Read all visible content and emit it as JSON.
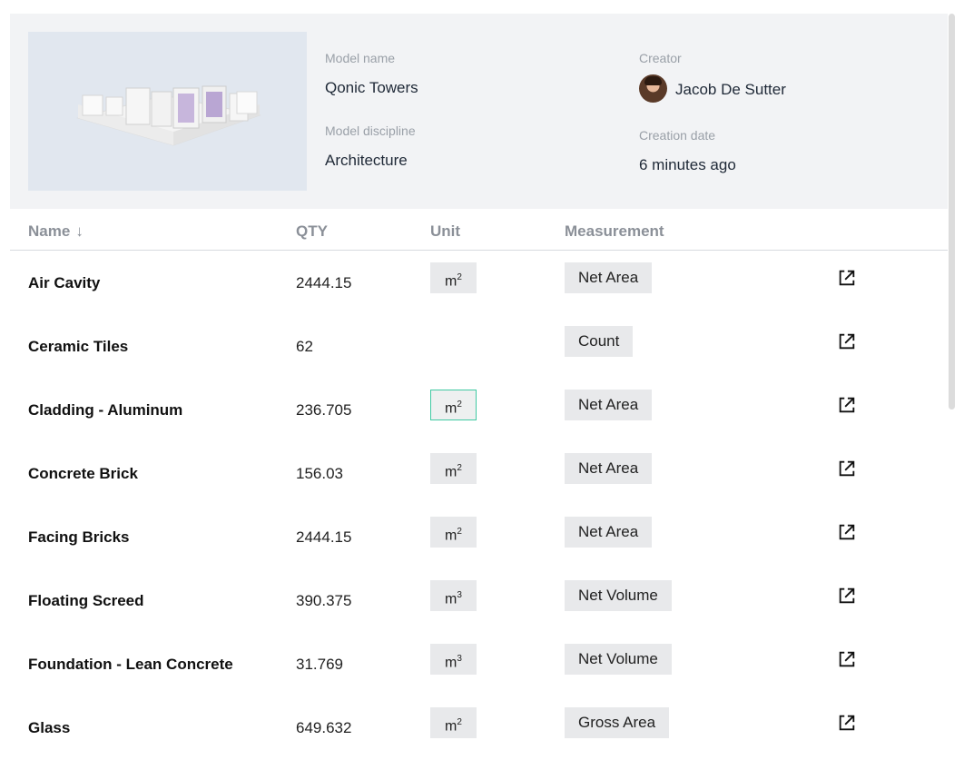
{
  "model": {
    "name_label": "Model name",
    "name": "Qonic Towers",
    "discipline_label": "Model discipline",
    "discipline": "Architecture",
    "creator_label": "Creator",
    "creator": "Jacob De Sutter",
    "creation_date_label": "Creation date",
    "creation_date": "6 minutes ago"
  },
  "table": {
    "columns": {
      "name": "Name",
      "sort_arrow": "↓",
      "qty": "QTY",
      "unit": "Unit",
      "measurement": "Measurement"
    },
    "rows": [
      {
        "name": "Air Cavity",
        "qty": "2444.15",
        "unit": "m",
        "unit_exp": "2",
        "measurement": "Net Area"
      },
      {
        "name": "Ceramic Tiles",
        "qty": "62",
        "unit": "",
        "unit_exp": "",
        "measurement": "Count"
      },
      {
        "name": "Cladding - Aluminum",
        "qty": "236.705",
        "unit": "m",
        "unit_exp": "2",
        "measurement": "Net Area"
      },
      {
        "name": "Concrete Brick",
        "qty": "156.03",
        "unit": "m",
        "unit_exp": "2",
        "measurement": "Net Area"
      },
      {
        "name": "Facing Bricks",
        "qty": "2444.15",
        "unit": "m",
        "unit_exp": "2",
        "measurement": "Net Area"
      },
      {
        "name": "Floating Screed",
        "qty": "390.375",
        "unit": "m",
        "unit_exp": "3",
        "measurement": "Net Volume"
      },
      {
        "name": "Foundation - Lean Concrete",
        "qty": "31.769",
        "unit": "m",
        "unit_exp": "3",
        "measurement": "Net Volume"
      },
      {
        "name": "Glass",
        "qty": "649.632",
        "unit": "m",
        "unit_exp": "2",
        "measurement": "Gross Area"
      }
    ]
  },
  "colors": {
    "panel_bg": "#f2f3f5",
    "chip_bg": "#e8e9eb",
    "focus_accent": "#40c9a2"
  },
  "icons": {
    "row_action": "open-external-icon"
  }
}
